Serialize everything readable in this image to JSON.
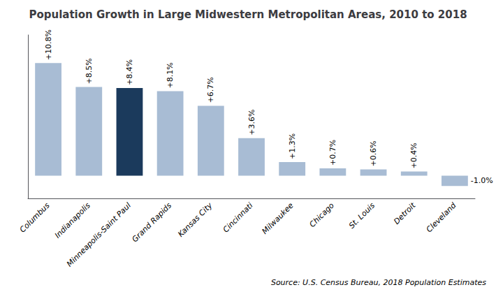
{
  "chart_data": {
    "type": "bar",
    "title": "Population Growth in Large Midwestern Metropolitan Areas, 2010 to 2018",
    "categories": [
      "Columbus",
      "Indianapolis",
      "Minneapolis-Saint Paul",
      "Grand Rapids",
      "Kansas City",
      "Cincinnati",
      "Milwaukee",
      "Chicago",
      "St. Louis",
      "Detroit",
      "Cleveland"
    ],
    "values": [
      10.8,
      8.5,
      8.4,
      8.1,
      6.7,
      3.6,
      1.3,
      0.7,
      0.6,
      0.4,
      -1.0
    ],
    "value_labels": [
      "+10.8%",
      "+8.5%",
      "+8.4%",
      "+8.1%",
      "+6.7%",
      "+3.6%",
      "+1.3%",
      "+0.7%",
      "+0.6%",
      "+0.4%",
      "-1.0%"
    ],
    "colors": [
      "#a8bcd4",
      "#a8bcd4",
      "#1b3a5c",
      "#a8bcd4",
      "#a8bcd4",
      "#a8bcd4",
      "#a8bcd4",
      "#a8bcd4",
      "#a8bcd4",
      "#a8bcd4",
      "#a8bcd4"
    ],
    "annotations": [
      "Source: U.S. Census Bureau, 2018 Population Estimates"
    ],
    "ylim": [
      -2.2,
      13.5
    ],
    "data_labels": true,
    "tick_labels": "x",
    "grid": false
  }
}
